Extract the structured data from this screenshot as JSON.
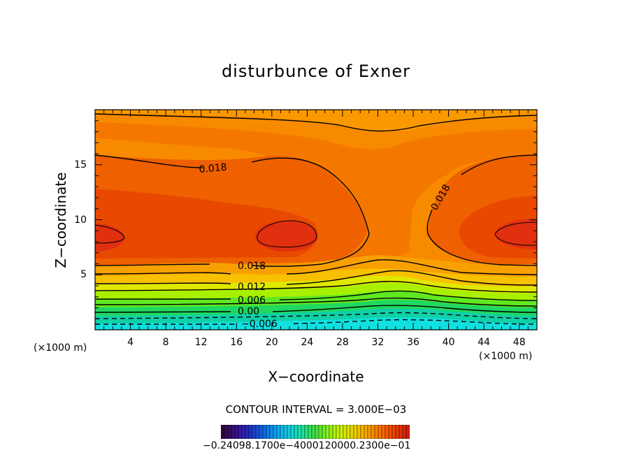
{
  "chart_data": {
    "type": "contour",
    "title": "disturbunce of Exner",
    "xlabel": "X−coordinate",
    "ylabel": "Z−coordinate",
    "x_unit": "(×1000 m)",
    "xlim": [
      0,
      50
    ],
    "ylim": [
      0,
      20
    ],
    "xticks": [
      4,
      8,
      12,
      16,
      20,
      24,
      28,
      32,
      36,
      40,
      44,
      48
    ],
    "yticks": [
      5,
      10,
      15
    ],
    "contour_interval_text": "CONTOUR INTERVAL = 3.000E−03",
    "contour_labels": [
      {
        "text": "0.018",
        "x": 16,
        "z": 15.2
      },
      {
        "text": "0.018",
        "x": 40,
        "z": 12.2
      },
      {
        "text": "0.018",
        "x": 18,
        "z": 5.8
      },
      {
        "text": "0.012",
        "x": 18,
        "z": 4.0
      },
      {
        "text": "0.006",
        "x": 18,
        "z": 2.7
      },
      {
        "text": "0.00",
        "x": 17.5,
        "z": 1.75
      },
      {
        "text": "−0.006",
        "x": 19,
        "z": 0.6
      }
    ],
    "colorbar": {
      "labels_text": "−0.24098.1700e−4000120000.2300e−01",
      "colors": [
        "#2a0a3a",
        "#3b0f8a",
        "#2030c0",
        "#1060e0",
        "#10a0f0",
        "#10d0e0",
        "#20e0a0",
        "#40e040",
        "#90f020",
        "#d0f000",
        "#f0d000",
        "#f8a000",
        "#f87000",
        "#f04000",
        "#d02010"
      ]
    }
  }
}
